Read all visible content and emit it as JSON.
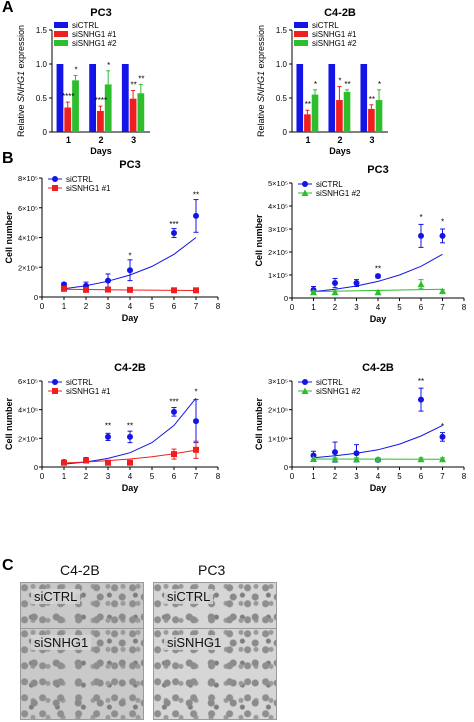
{
  "panels": {
    "a": "A",
    "b": "B",
    "c": "C"
  },
  "colors": {
    "siCTRL": "#1414e6",
    "siSNHG1_1": "#ef1f1f",
    "siSNHG1_2": "#2dbd2d"
  },
  "chart_data": [
    {
      "type": "bar",
      "title": "PC3",
      "xlabel": "Days",
      "ylabel": "Relative SNHG1 expression",
      "categories": [
        "1",
        "2",
        "3"
      ],
      "ylim": [
        0,
        1.5
      ],
      "yticks": [
        "0",
        "0.5",
        "1.0",
        "1.5"
      ],
      "series": [
        {
          "name": "siCTRL",
          "values": [
            1.0,
            1.0,
            1.0
          ],
          "errors": [
            0,
            0,
            0
          ]
        },
        {
          "name": "siSNHG1 #1",
          "values": [
            0.36,
            0.31,
            0.49
          ],
          "errors": [
            0.08,
            0.07,
            0.12
          ]
        },
        {
          "name": "siSNHG1 #2",
          "values": [
            0.76,
            0.7,
            0.57
          ],
          "errors": [
            0.07,
            0.2,
            0.13
          ]
        }
      ],
      "annotations": [
        {
          "series": 1,
          "index": 0,
          "text": "****"
        },
        {
          "series": 2,
          "index": 0,
          "text": "*"
        },
        {
          "series": 1,
          "index": 1,
          "text": "****"
        },
        {
          "series": 2,
          "index": 1,
          "text": "*"
        },
        {
          "series": 1,
          "index": 2,
          "text": "**"
        },
        {
          "series": 2,
          "index": 2,
          "text": "**"
        }
      ]
    },
    {
      "type": "bar",
      "title": "C4-2B",
      "xlabel": "Days",
      "ylabel": "Relative SNHG1 expression",
      "categories": [
        "1",
        "2",
        "3"
      ],
      "ylim": [
        0,
        1.5
      ],
      "yticks": [
        "0",
        "0.5",
        "1.0",
        "1.5"
      ],
      "series": [
        {
          "name": "siCTRL",
          "values": [
            1.0,
            1.0,
            1.0
          ],
          "errors": [
            0,
            0,
            0
          ]
        },
        {
          "name": "siSNHG1 #1",
          "values": [
            0.26,
            0.47,
            0.34
          ],
          "errors": [
            0.06,
            0.2,
            0.06
          ]
        },
        {
          "name": "siSNHG1 #2",
          "values": [
            0.55,
            0.59,
            0.47
          ],
          "errors": [
            0.07,
            0.03,
            0.15
          ]
        }
      ],
      "annotations": [
        {
          "series": 1,
          "index": 0,
          "text": "**"
        },
        {
          "series": 2,
          "index": 0,
          "text": "*"
        },
        {
          "series": 1,
          "index": 1,
          "text": "*"
        },
        {
          "series": 2,
          "index": 1,
          "text": "**"
        },
        {
          "series": 1,
          "index": 2,
          "text": "**"
        },
        {
          "series": 2,
          "index": 2,
          "text": "*"
        }
      ]
    },
    {
      "type": "scatter",
      "title": "PC3",
      "xlabel": "Day",
      "ylabel": "Cell number",
      "xlim": [
        0,
        8
      ],
      "ylim": [
        0,
        800000
      ],
      "xticks": [
        "0",
        "1",
        "2",
        "3",
        "4",
        "5",
        "6",
        "7",
        "8"
      ],
      "yticks": [
        "0",
        "2×10⁵",
        "4×10⁵",
        "6×10⁵",
        "8×10⁵"
      ],
      "series": [
        {
          "name": "siCTRL",
          "x": [
            1,
            2,
            3,
            4,
            6,
            7
          ],
          "y": [
            85000,
            75000,
            110000,
            180000,
            430000,
            545000
          ],
          "errors": [
            12000,
            25000,
            45000,
            70000,
            30000,
            110000
          ],
          "marker": "circle",
          "fit": [
            [
              1,
              55000
            ],
            [
              2,
              76000
            ],
            [
              3,
              106000
            ],
            [
              4,
              148000
            ],
            [
              5,
              206000
            ],
            [
              6,
              287000
            ],
            [
              7,
              400000
            ]
          ]
        },
        {
          "name": "siSNHG1 #1",
          "x": [
            1,
            2,
            3,
            4,
            6,
            7
          ],
          "y": [
            55000,
            48000,
            50000,
            48000,
            45000,
            45000
          ],
          "errors": [
            8000,
            8000,
            8000,
            8000,
            10000,
            8000
          ],
          "marker": "square",
          "fit": [
            [
              1,
              52000
            ],
            [
              4,
              47000
            ],
            [
              7,
              44000
            ]
          ]
        }
      ],
      "annotations": [
        {
          "x": 4,
          "y": 260000,
          "text": "*"
        },
        {
          "x": 6,
          "y": 470000,
          "text": "***"
        },
        {
          "x": 7,
          "y": 670000,
          "text": "**"
        }
      ]
    },
    {
      "type": "scatter",
      "title": "PC3",
      "xlabel": "Day",
      "ylabel": "Cell number",
      "xlim": [
        0,
        8
      ],
      "ylim": [
        0,
        500000
      ],
      "xticks": [
        "0",
        "1",
        "2",
        "3",
        "4",
        "5",
        "6",
        "7",
        "8"
      ],
      "yticks": [
        "0",
        "1×10⁵",
        "2×10⁵",
        "3×10⁵",
        "4×10⁵",
        "5×10⁵"
      ],
      "series": [
        {
          "name": "siCTRL",
          "x": [
            1,
            2,
            3,
            4,
            6,
            7
          ],
          "y": [
            35000,
            65000,
            65000,
            95000,
            270000,
            270000
          ],
          "errors": [
            15000,
            20000,
            15000,
            8000,
            50000,
            30000
          ],
          "marker": "circle",
          "fit": [
            [
              1,
              28000
            ],
            [
              2,
              38000
            ],
            [
              3,
              52000
            ],
            [
              4,
              72000
            ],
            [
              5,
              100000
            ],
            [
              6,
              138000
            ],
            [
              7,
              190000
            ]
          ]
        },
        {
          "name": "siSNHG1 #2",
          "x": [
            1,
            2,
            4,
            6,
            7
          ],
          "y": [
            25000,
            25000,
            25000,
            60000,
            30000
          ],
          "errors": [
            6000,
            6000,
            6000,
            20000,
            6000
          ],
          "marker": "triangle",
          "fit": [
            [
              1,
              28000
            ],
            [
              4,
              33000
            ],
            [
              7,
              38000
            ]
          ]
        }
      ],
      "annotations": [
        {
          "x": 4,
          "y": 115000,
          "text": "**"
        },
        {
          "x": 6,
          "y": 340000,
          "text": "*"
        },
        {
          "x": 7,
          "y": 320000,
          "text": "*"
        }
      ]
    },
    {
      "type": "scatter",
      "title": "C4-2B",
      "xlabel": "Day",
      "ylabel": "Cell number",
      "xlim": [
        0,
        8
      ],
      "ylim": [
        0,
        600000
      ],
      "xticks": [
        "0",
        "1",
        "2",
        "3",
        "4",
        "5",
        "6",
        "7",
        "8"
      ],
      "yticks": [
        "0",
        "2×10⁵",
        "4×10⁵",
        "6×10⁵"
      ],
      "series": [
        {
          "name": "siCTRL",
          "x": [
            1,
            2,
            3,
            4,
            6,
            7
          ],
          "y": [
            35000,
            50000,
            210000,
            210000,
            385000,
            320000
          ],
          "errors": [
            10000,
            15000,
            25000,
            40000,
            30000,
            150000
          ],
          "marker": "circle",
          "fit": [
            [
              1,
              20000
            ],
            [
              2,
              35000
            ],
            [
              3,
              60000
            ],
            [
              4,
              100000
            ],
            [
              5,
              170000
            ],
            [
              6,
              290000
            ],
            [
              7,
              480000
            ]
          ]
        },
        {
          "name": "siSNHG1 #1",
          "x": [
            1,
            2,
            3,
            4,
            6,
            7
          ],
          "y": [
            30000,
            45000,
            30000,
            30000,
            90000,
            120000
          ],
          "errors": [
            8000,
            10000,
            8000,
            8000,
            35000,
            60000
          ],
          "marker": "square",
          "fit": [
            [
              1,
              28000
            ],
            [
              2,
              35000
            ],
            [
              3,
              45000
            ],
            [
              4,
              56000
            ],
            [
              5,
              72000
            ],
            [
              6,
              92000
            ],
            [
              7,
              118000
            ]
          ]
        }
      ],
      "annotations": [
        {
          "x": 3,
          "y": 270000,
          "text": "**"
        },
        {
          "x": 4,
          "y": 270000,
          "text": "**"
        },
        {
          "x": 6,
          "y": 435000,
          "text": "***"
        },
        {
          "x": 7,
          "y": 505000,
          "text": "*"
        }
      ]
    },
    {
      "type": "scatter",
      "title": "C4-2B",
      "xlabel": "Day",
      "ylabel": "Cell number",
      "xlim": [
        0,
        8
      ],
      "ylim": [
        0,
        300000
      ],
      "xticks": [
        "0",
        "1",
        "2",
        "3",
        "4",
        "5",
        "6",
        "7",
        "8"
      ],
      "yticks": [
        "0",
        "1×10⁵",
        "2×10⁵",
        "3×10⁵"
      ],
      "series": [
        {
          "name": "siCTRL",
          "x": [
            1,
            2,
            3,
            4,
            6,
            7
          ],
          "y": [
            40000,
            52000,
            48000,
            25000,
            235000,
            105000
          ],
          "errors": [
            15000,
            35000,
            30000,
            5000,
            40000,
            15000
          ],
          "marker": "circle",
          "fit": [
            [
              1,
              32000
            ],
            [
              2,
              39000
            ],
            [
              3,
              48000
            ],
            [
              4,
              60000
            ],
            [
              5,
              80000
            ],
            [
              6,
              108000
            ],
            [
              7,
              145000
            ]
          ]
        },
        {
          "name": "siSNHG1 #2",
          "x": [
            1,
            2,
            3,
            4,
            6,
            7
          ],
          "y": [
            28000,
            27000,
            27000,
            27000,
            27000,
            27000
          ],
          "errors": [
            5000,
            5000,
            5000,
            5000,
            5000,
            5000
          ],
          "marker": "triangle",
          "fit": [
            [
              1,
              28000
            ],
            [
              4,
              27500
            ],
            [
              7,
              27000
            ]
          ]
        }
      ],
      "annotations": [
        {
          "x": 6,
          "y": 290000,
          "text": "**"
        },
        {
          "x": 7,
          "y": 133000,
          "text": "*"
        }
      ]
    }
  ],
  "micrographs": {
    "columns": [
      "C4-2B",
      "PC3"
    ],
    "labels": [
      "siCTRL",
      "siCTRL",
      "siSNHG1",
      "siSNHG1"
    ]
  }
}
